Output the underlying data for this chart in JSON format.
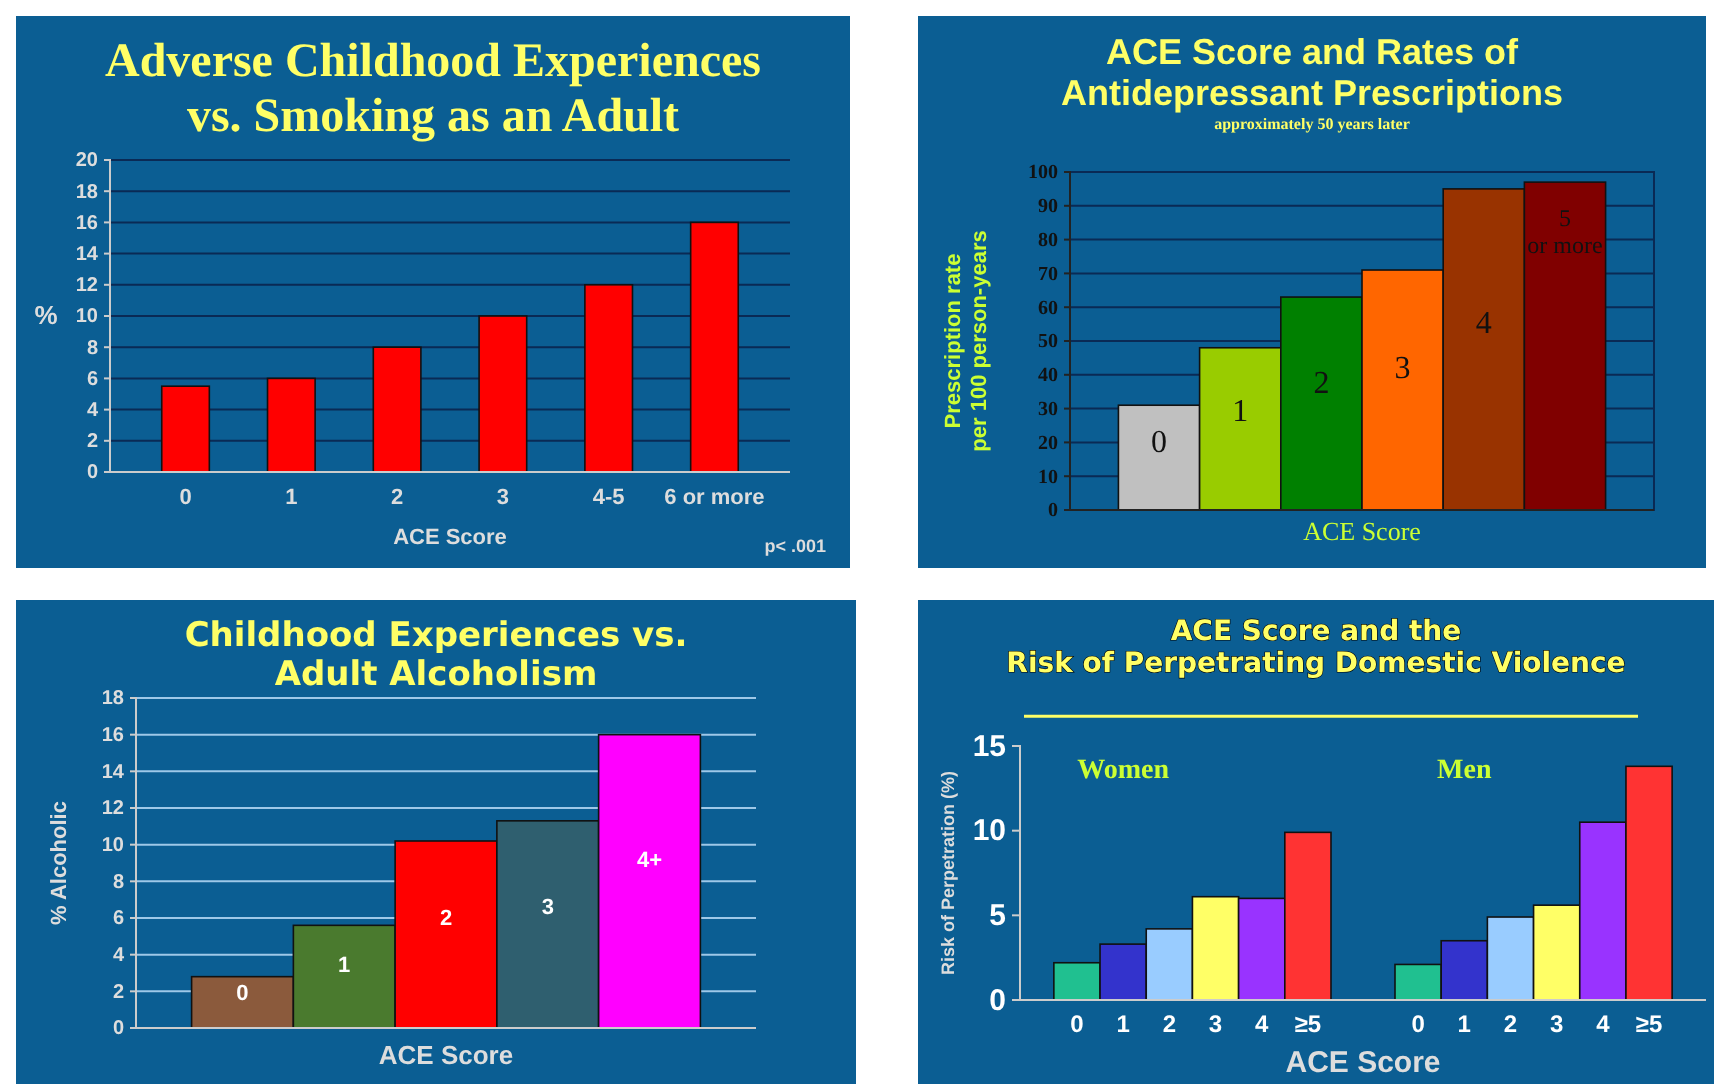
{
  "chart_data": [
    {
      "type": "bar",
      "title": "Adverse Childhood Experiences\nvs. Smoking as an Adult",
      "xlabel": "ACE Score",
      "ylabel": "%",
      "categories": [
        "0",
        "1",
        "2",
        "3",
        "4-5",
        "6 or more"
      ],
      "values": [
        5.5,
        6,
        8,
        10,
        12,
        16
      ],
      "color": "#ff0000",
      "ylim": [
        0,
        20
      ],
      "yticks": [
        0,
        2,
        4,
        6,
        8,
        10,
        12,
        14,
        16,
        18,
        20
      ],
      "grid": "y",
      "annotations": [
        "p< .001"
      ]
    },
    {
      "type": "bar",
      "title": "ACE Score and Rates of\nAntidepressant Prescriptions",
      "subtitle": "approximately 50 years later",
      "xlabel": "ACE Score",
      "ylabel": "Prescription rate\nper 100 person-years",
      "categories": [
        "0",
        "1",
        "2",
        "3",
        "4",
        "5 or more"
      ],
      "values": [
        31,
        48,
        63,
        71,
        95,
        97
      ],
      "colors": [
        "#c0c0c0",
        "#99cc00",
        "#008000",
        "#ff6600",
        "#993300",
        "#800000"
      ],
      "ylim": [
        0,
        100
      ],
      "yticks": [
        0,
        10,
        20,
        30,
        40,
        50,
        60,
        70,
        80,
        90,
        100
      ],
      "grid": "y"
    },
    {
      "type": "bar",
      "title": "Childhood Experiences vs.\nAdult Alcoholism",
      "xlabel": "ACE Score",
      "ylabel": "% Alcoholic",
      "categories": [
        "0",
        "1",
        "2",
        "3",
        "4+"
      ],
      "values": [
        2.8,
        5.6,
        10.2,
        11.3,
        16
      ],
      "colors": [
        "#8b5a3c",
        "#4a7a2e",
        "#ff0000",
        "#2f5f6f",
        "#ff00ff"
      ],
      "ylim": [
        0,
        18
      ],
      "yticks": [
        0,
        2,
        4,
        6,
        8,
        10,
        12,
        14,
        16,
        18
      ],
      "grid": "y"
    },
    {
      "type": "bar",
      "title": "ACE Score and the\nRisk of Perpetrating Domestic Violence",
      "xlabel": "ACE Score",
      "ylabel": "Risk of Perpetration (%)",
      "categories": [
        "0",
        "1",
        "2",
        "3",
        "4",
        "≥5",
        "0",
        "1",
        "2",
        "3",
        "4",
        "≥5"
      ],
      "values": [
        2.2,
        3.3,
        4.2,
        6.1,
        6.0,
        9.9,
        2.1,
        3.5,
        4.9,
        5.6,
        10.5,
        13.8
      ],
      "colors": [
        "#20c090",
        "#3333cc",
        "#99ccff",
        "#ffff66",
        "#9933ff",
        "#ff3333",
        "#20c090",
        "#3333cc",
        "#99ccff",
        "#ffff66",
        "#9933ff",
        "#ff3333"
      ],
      "ylim": [
        0,
        15
      ],
      "yticks": [
        0,
        5,
        10,
        15
      ],
      "grid": false,
      "annotations": [
        "Women",
        "Men"
      ]
    }
  ]
}
